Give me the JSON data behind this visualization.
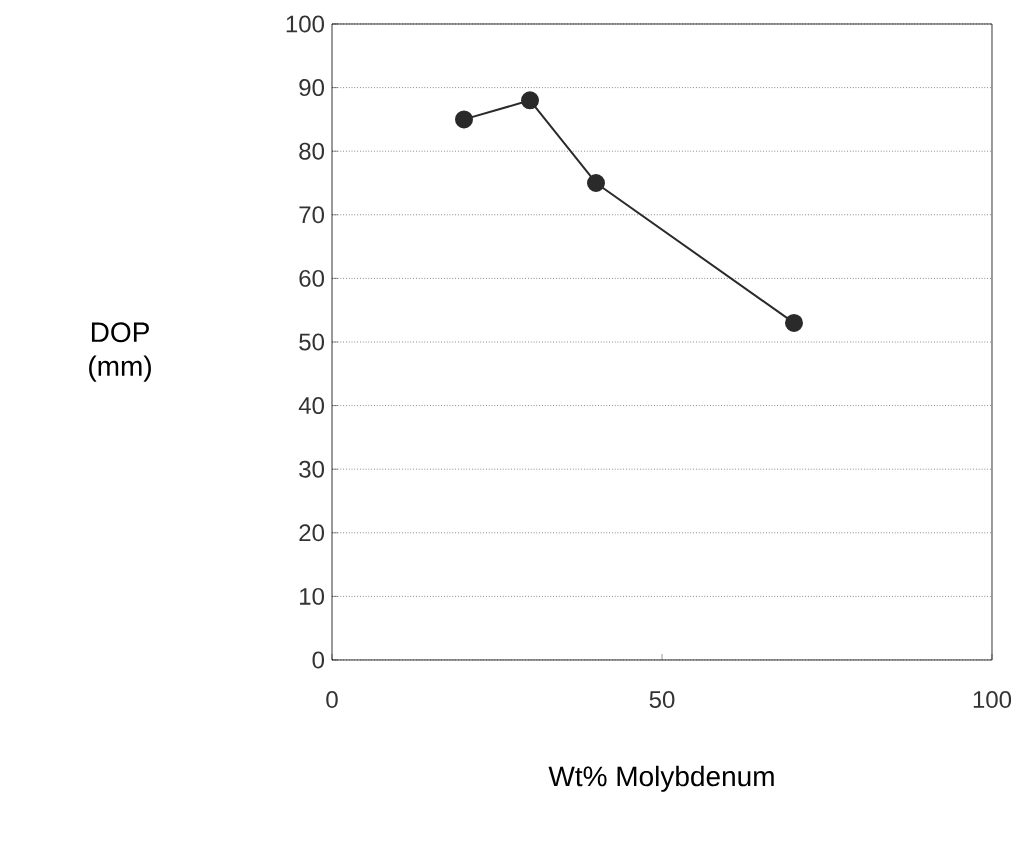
{
  "chart_data": {
    "type": "line",
    "xlabel": "Wt% Molybdenum",
    "ylabel": "DOP\n(mm)",
    "xlim": [
      0,
      100
    ],
    "ylim": [
      0,
      100
    ],
    "xticks": [
      0,
      50,
      100
    ],
    "yticks": [
      0,
      10,
      20,
      30,
      40,
      50,
      60,
      70,
      80,
      90,
      100
    ],
    "grid": "y",
    "marker": "circle",
    "line_style": "solid",
    "series": [
      {
        "color": "#2a2a2a",
        "x": [
          20,
          30,
          40,
          70
        ],
        "values": [
          85,
          88,
          75,
          53
        ]
      }
    ]
  }
}
